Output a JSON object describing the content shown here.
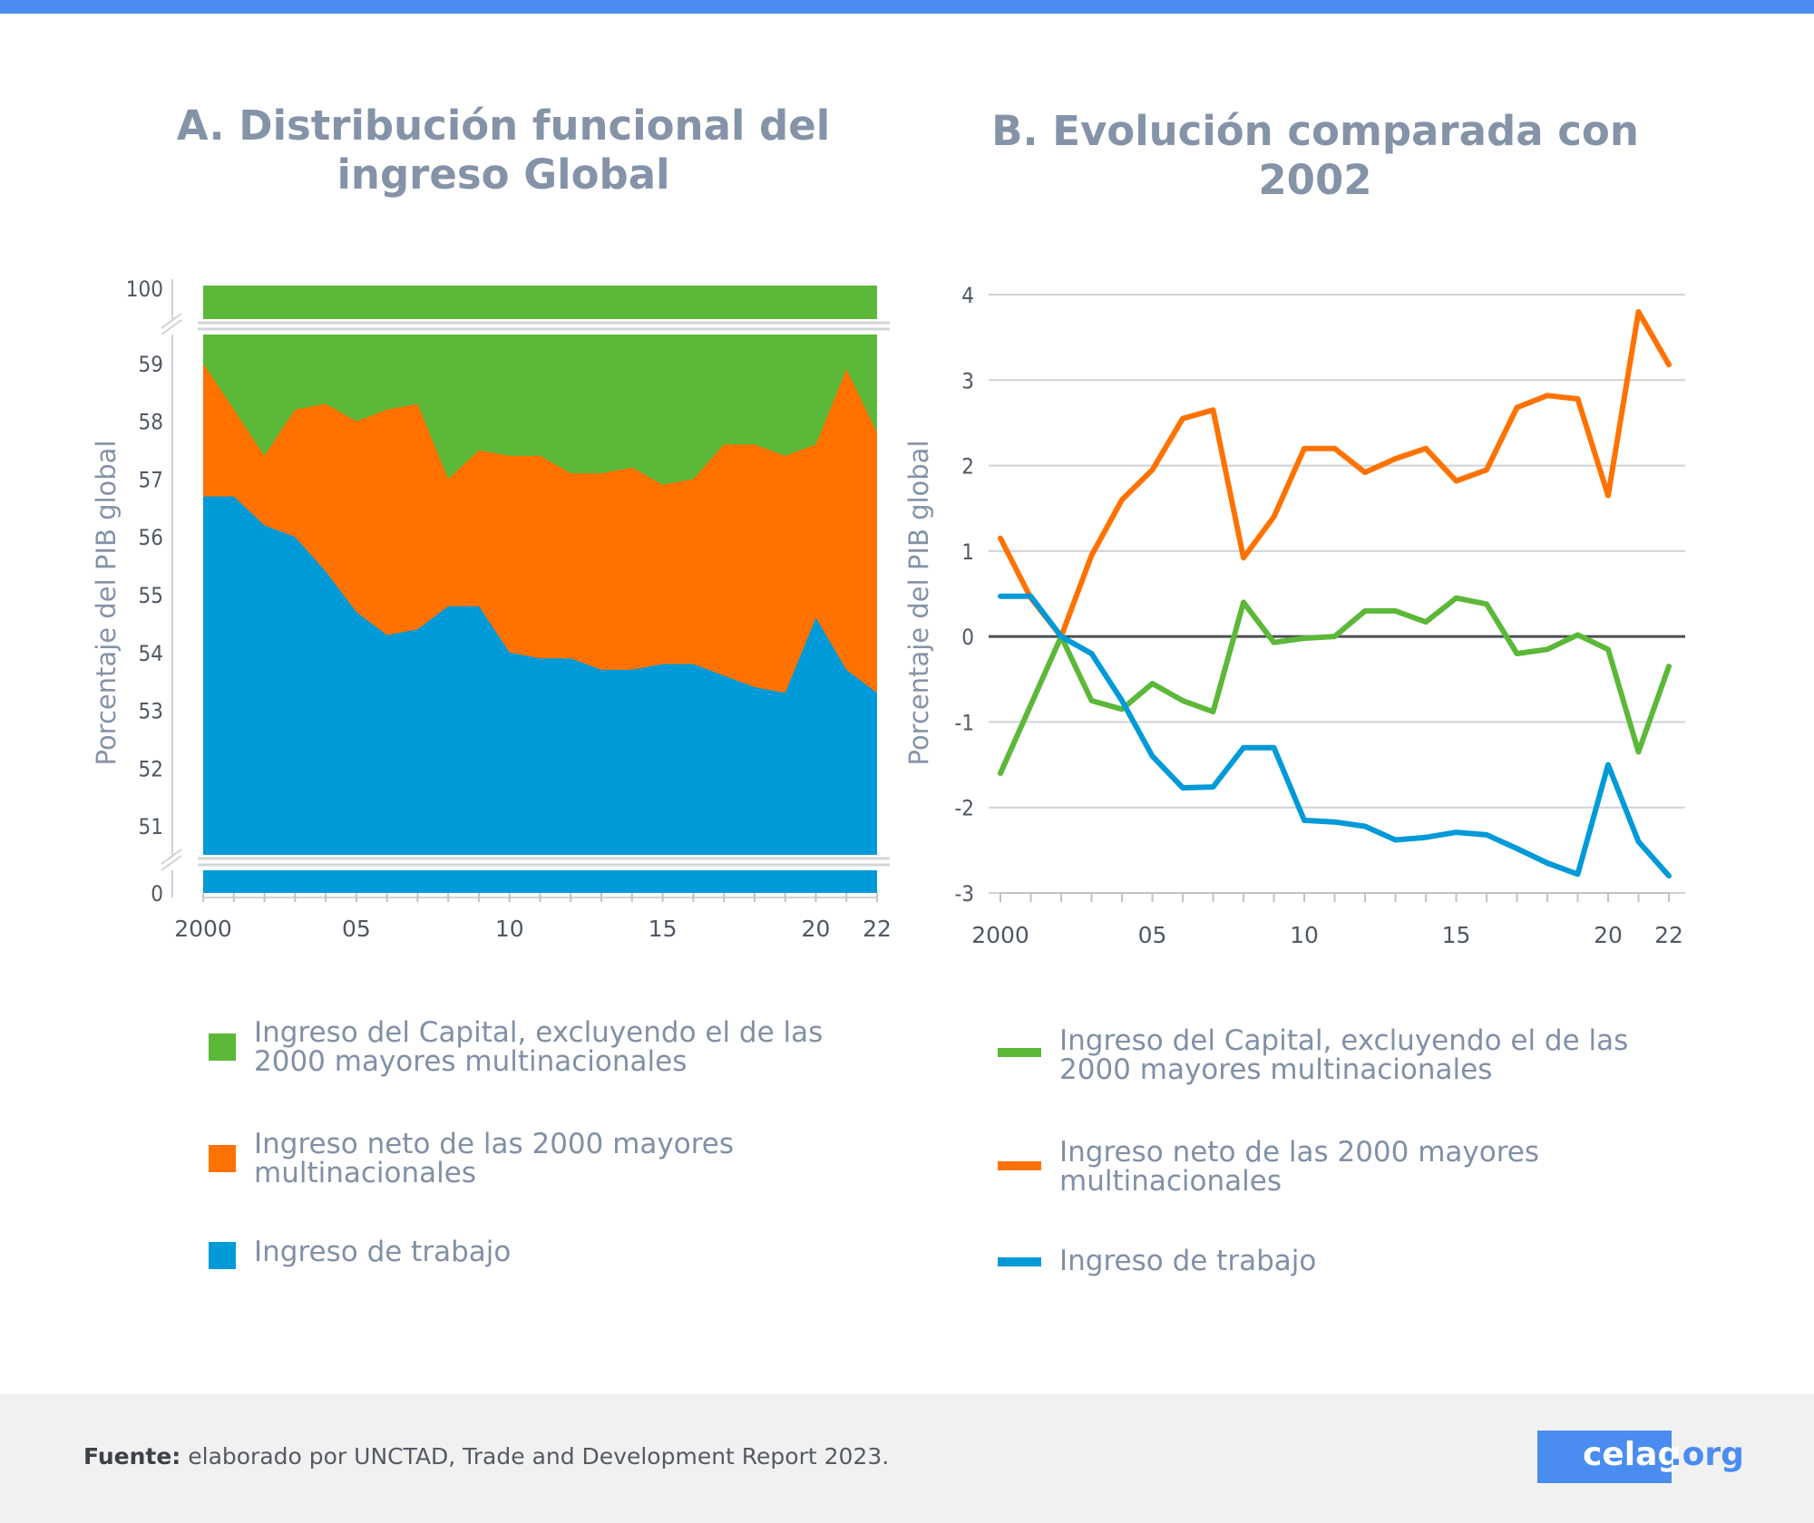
{
  "titles": {
    "a": "A. Distribución funcional del ingreso Global",
    "b": "B. Evolución comparada con 2002"
  },
  "chart_data": [
    {
      "type": "area",
      "stacked": true,
      "title": "A. Distribución funcional del ingreso Global",
      "ylabel": "Porcentaje del PIB global",
      "ylim": [
        50.5,
        59.5
      ],
      "y_break": {
        "top_value": 100,
        "bottom_value": 0
      },
      "yticks": [
        "100",
        "59",
        "58",
        "57",
        "56",
        "55",
        "54",
        "53",
        "52",
        "51",
        "0"
      ],
      "xticks": [
        "2000",
        "05",
        "10",
        "15",
        "20",
        "22"
      ],
      "x": [
        2000,
        2001,
        2002,
        2003,
        2004,
        2005,
        2006,
        2007,
        2008,
        2009,
        2010,
        2011,
        2012,
        2013,
        2014,
        2015,
        2016,
        2017,
        2018,
        2019,
        2020,
        2021,
        2022
      ],
      "series": [
        {
          "name": "Ingreso de trabajo",
          "color": "#009ad8",
          "upper": [
            56.7,
            56.7,
            56.2,
            56.0,
            55.4,
            54.7,
            54.3,
            54.4,
            54.8,
            54.8,
            54.0,
            53.9,
            53.9,
            53.7,
            53.7,
            53.8,
            53.8,
            53.6,
            53.4,
            53.3,
            54.6,
            53.7,
            53.3
          ]
        },
        {
          "name": "Ingreso neto de las 2000 mayores multinacionales",
          "color": "#ff7200",
          "upper": [
            59.0,
            58.2,
            57.4,
            58.2,
            58.3,
            58.0,
            58.2,
            58.3,
            57.0,
            57.5,
            57.4,
            57.4,
            57.1,
            57.1,
            57.2,
            56.9,
            57.0,
            57.6,
            57.6,
            57.4,
            57.6,
            58.9,
            57.8
          ]
        },
        {
          "name": "Ingreso del Capital, excluyendo el de las 2000 mayores multinacionales",
          "color": "#5cb839",
          "upper": [
            100,
            100,
            100,
            100,
            100,
            100,
            100,
            100,
            100,
            100,
            100,
            100,
            100,
            100,
            100,
            100,
            100,
            100,
            100,
            100,
            100,
            100,
            100
          ]
        }
      ]
    },
    {
      "type": "line",
      "title": "B. Evolución comparada con 2002",
      "ylabel": "Porcentaje del PIB global",
      "ylim": [
        -3,
        4
      ],
      "yticks": [
        "4",
        "3",
        "2",
        "1",
        "0",
        "-1",
        "-2",
        "-3"
      ],
      "xticks": [
        "2000",
        "05",
        "10",
        "15",
        "20",
        "22"
      ],
      "x": [
        2000,
        2001,
        2002,
        2003,
        2004,
        2005,
        2006,
        2007,
        2008,
        2009,
        2010,
        2011,
        2012,
        2013,
        2014,
        2015,
        2016,
        2017,
        2018,
        2019,
        2020,
        2021,
        2022
      ],
      "series": [
        {
          "name": "Ingreso del Capital, excluyendo el de las 2000 mayores multinacionales",
          "color": "#5cb839",
          "values": [
            -1.6,
            -0.8,
            0.0,
            -0.75,
            -0.85,
            -0.55,
            -0.75,
            -0.88,
            0.4,
            -0.07,
            -0.02,
            0.0,
            0.3,
            0.3,
            0.17,
            0.45,
            0.38,
            -0.2,
            -0.15,
            0.02,
            -0.15,
            -1.35,
            -0.35
          ]
        },
        {
          "name": "Ingreso neto de las 2000 mayores multinacionales",
          "color": "#ff7200",
          "values": [
            1.15,
            0.45,
            0.0,
            0.95,
            1.6,
            1.95,
            2.55,
            2.65,
            0.92,
            1.4,
            2.2,
            2.2,
            1.92,
            2.08,
            2.2,
            1.82,
            1.95,
            2.68,
            2.82,
            2.78,
            1.65,
            3.8,
            3.18
          ]
        },
        {
          "name": "Ingreso de trabajo",
          "color": "#009ad8",
          "values": [
            0.47,
            0.47,
            0.0,
            -0.2,
            -0.75,
            -1.4,
            -1.77,
            -1.76,
            -1.3,
            -1.3,
            -2.15,
            -2.17,
            -2.22,
            -2.38,
            -2.35,
            -2.29,
            -2.32,
            -2.48,
            -2.65,
            -2.78,
            -1.5,
            -2.4,
            -2.8
          ]
        }
      ]
    }
  ],
  "legend_a": [
    {
      "label": "Ingreso del Capital, excluyendo el de las 2000 mayores multinacionales",
      "color": "#5cb839"
    },
    {
      "label": "Ingreso neto de las 2000 mayores multinacionales",
      "color": "#ff7200"
    },
    {
      "label": "Ingreso de trabajo",
      "color": "#009ad8"
    }
  ],
  "legend_b": [
    {
      "label": "Ingreso del Capital, excluyendo el de las 2000 mayores multinacionales",
      "color": "#5cb839"
    },
    {
      "label": "Ingreso neto de las 2000 mayores multinacionales",
      "color": "#ff7200"
    },
    {
      "label": "Ingreso de trabajo",
      "color": "#009ad8"
    }
  ],
  "footer": {
    "source_label": "Fuente:",
    "source_text": " elaborado por UNCTAD, Trade and Development Report 2023.",
    "logo_main": "celag",
    "logo_suffix": ".org"
  }
}
